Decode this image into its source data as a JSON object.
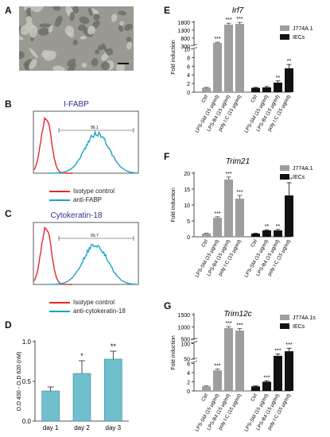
{
  "panel_labels": {
    "A": "A",
    "B": "B",
    "C": "C",
    "D": "D",
    "E": "E",
    "F": "F",
    "G": "G"
  },
  "flow_b": {
    "title": "I-FABP",
    "gate_value": "95.1",
    "legend": [
      "Isotype control",
      "anti-FABP"
    ],
    "colors": {
      "isotype": "#e8262a",
      "antibody": "#1aa3c8",
      "title": "#2d2f8f"
    }
  },
  "flow_c": {
    "title": "Cytokeratin-18",
    "gate_value": "93.7",
    "legend": [
      "Isotype control",
      "anti-cytokeratin-18"
    ],
    "colors": {
      "isotype": "#e8262a",
      "antibody": "#1aa3c8",
      "title": "#2d2f8f"
    }
  },
  "colors": {
    "grey_bar": "#9e9e9e",
    "black_bar": "#111111",
    "teal_bar": "#6fbfcc"
  },
  "chart_data": [
    {
      "type": "bar",
      "panel": "D",
      "categories": [
        "day 1",
        "day 2",
        "day 3"
      ],
      "values": [
        0.38,
        0.6,
        0.78
      ],
      "errors": [
        0.05,
        0.16,
        0.1
      ],
      "significance": [
        "",
        "*",
        "**"
      ],
      "ylabel": "O.D 450 - O.D 620 (nM)",
      "ylim": [
        0,
        1.0
      ],
      "yticks": [
        "0.0",
        "0.5",
        "1.0"
      ]
    },
    {
      "type": "bar",
      "panel": "E",
      "title": "Irf7",
      "ylabel": "Fold induction",
      "categories": [
        "Ctrl",
        "LPS-SM (15 μg/ml)",
        "LPS-B4 (15 μg/ml)",
        "poly I:C (15 μg/ml)"
      ],
      "series": [
        {
          "name": "J774A.1",
          "values": [
            1,
            500,
            1650,
            1700
          ],
          "errors": [
            0.1,
            40,
            90,
            90
          ],
          "significance": [
            "",
            "***",
            "***",
            "***"
          ]
        },
        {
          "name": "IECs",
          "values": [
            1,
            1.1,
            2.2,
            5.5
          ],
          "errors": [
            0.1,
            0.2,
            0.4,
            0.9
          ],
          "significance": [
            "",
            "",
            "**",
            "**"
          ]
        }
      ],
      "yticks": [
        "0",
        "2",
        "4",
        "6",
        "8",
        "10",
        "300",
        "800",
        "1300",
        "1800"
      ]
    },
    {
      "type": "bar",
      "panel": "F",
      "title": "Trim21",
      "ylabel": "Fold induction",
      "categories": [
        "Ctrl",
        "LPS-SM (15 μg/ml)",
        "LPS-B4 (15 μg/ml)",
        "poly I:C (15 μg/ml)"
      ],
      "series": [
        {
          "name": "J774A.1",
          "values": [
            1,
            6,
            18,
            12
          ],
          "errors": [
            0.1,
            0.3,
            0.8,
            1.0
          ],
          "significance": [
            "",
            "***",
            "***",
            "***"
          ]
        },
        {
          "name": "IECs",
          "values": [
            1,
            2,
            2,
            13
          ],
          "errors": [
            0.1,
            0.2,
            0.3,
            4.0
          ],
          "significance": [
            "",
            "**",
            "**",
            "***"
          ]
        }
      ],
      "ylim": [
        0,
        20
      ],
      "yticks": [
        "0",
        "5",
        "10",
        "15",
        "20"
      ]
    },
    {
      "type": "bar",
      "panel": "G",
      "title": "Trim12c",
      "ylabel": "Fold induction",
      "categories": [
        "Ctrl",
        "LPS-SM (15 μg/ml)",
        "LPS-B4 (15 μg/ml)",
        "poly I:C (15 μg/ml)"
      ],
      "series": [
        {
          "name": "J774A 1s",
          "values": [
            1,
            4.5,
            950,
            850
          ],
          "errors": [
            0.1,
            0.3,
            60,
            80
          ],
          "significance": [
            "",
            "***",
            "***",
            "***"
          ]
        },
        {
          "name": "IECs",
          "values": [
            1,
            2,
            60,
            75
          ],
          "errors": [
            0.1,
            0.2,
            6,
            10
          ],
          "significance": [
            "",
            "***",
            "***",
            "***"
          ]
        }
      ],
      "yticks": [
        "0",
        "2",
        "4",
        "6",
        "50",
        "100",
        "500",
        "1000",
        "1500"
      ]
    }
  ]
}
